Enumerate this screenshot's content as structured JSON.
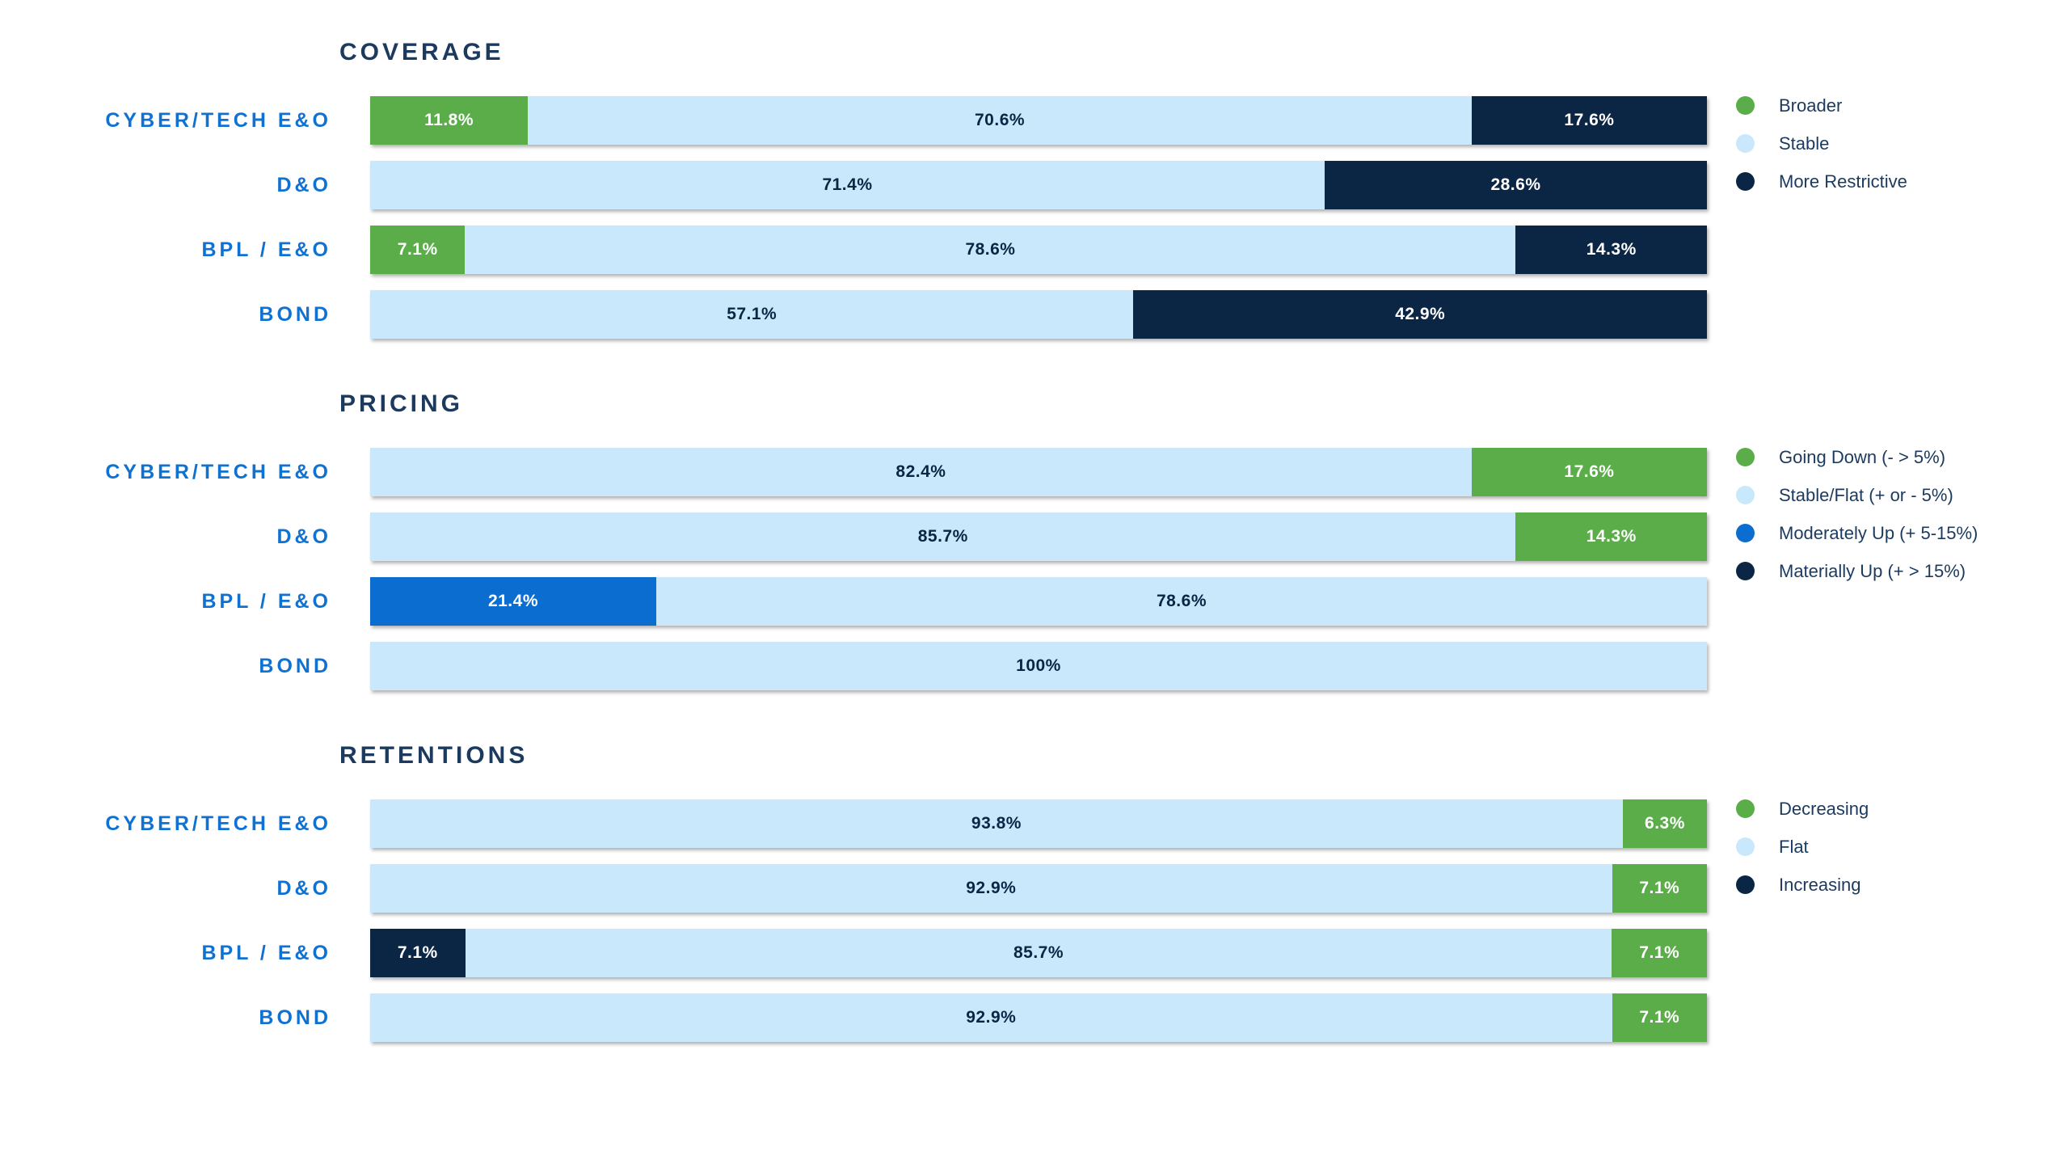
{
  "page": {
    "background": "#FFFFFF"
  },
  "colors": {
    "green": "#5BAD49",
    "light_blue": "#C9E8FB",
    "dark_navy": "#0B2645",
    "medium_blue": "#0C6DD0",
    "row_label_blue": "#0F72D2",
    "title_navy": "#1B3A5E"
  },
  "chart_data": [
    {
      "type": "bar",
      "stacked": true,
      "orientation": "horizontal",
      "title": "COVERAGE",
      "unit": "%",
      "xlim": [
        0,
        100
      ],
      "grid": false,
      "legend_position": "right",
      "categories": [
        "CYBER/TECH E&O",
        "D&O",
        "BPL / E&O",
        "BOND"
      ],
      "series": [
        {
          "name": "Broader",
          "color": "#5BAD49",
          "text_color": "#FFFFFF",
          "values": [
            11.8,
            null,
            7.1,
            null
          ]
        },
        {
          "name": "Stable",
          "color": "#C9E8FB",
          "text_color": "#0B2645",
          "values": [
            70.6,
            71.4,
            78.6,
            57.1
          ]
        },
        {
          "name": "More Restrictive",
          "color": "#0B2645",
          "text_color": "#FFFFFF",
          "values": [
            17.6,
            28.6,
            14.3,
            42.9
          ]
        }
      ],
      "legend": [
        {
          "label": "Broader",
          "color": "#5BAD49"
        },
        {
          "label": "Stable",
          "color": "#C9E8FB"
        },
        {
          "label": "More Restrictive",
          "color": "#0B2645"
        }
      ]
    },
    {
      "type": "bar",
      "stacked": true,
      "orientation": "horizontal",
      "title": "PRICING",
      "unit": "%",
      "xlim": [
        0,
        100
      ],
      "grid": false,
      "legend_position": "right",
      "categories": [
        "CYBER/TECH E&O",
        "D&O",
        "BPL / E&O",
        "BOND"
      ],
      "series": [
        {
          "name": "Moderately Up (+ 5-15%)",
          "color": "#0C6DD0",
          "text_color": "#FFFFFF",
          "values": [
            null,
            null,
            21.4,
            null
          ]
        },
        {
          "name": "Stable/Flat (+ or - 5%)",
          "color": "#C9E8FB",
          "text_color": "#0B2645",
          "values": [
            82.4,
            85.7,
            78.6,
            100
          ]
        },
        {
          "name": "Going Down (- > 5%)",
          "color": "#5BAD49",
          "text_color": "#FFFFFF",
          "values": [
            17.6,
            14.3,
            null,
            null
          ]
        }
      ],
      "legend": [
        {
          "label": "Going Down (- > 5%)",
          "color": "#5BAD49"
        },
        {
          "label": "Stable/Flat (+ or - 5%)",
          "color": "#C9E8FB"
        },
        {
          "label": "Moderately Up (+ 5-15%)",
          "color": "#0C6DD0"
        },
        {
          "label": "Materially Up (+ > 15%)",
          "color": "#0B2645"
        }
      ]
    },
    {
      "type": "bar",
      "stacked": true,
      "orientation": "horizontal",
      "title": "RETENTIONS",
      "unit": "%",
      "xlim": [
        0,
        100
      ],
      "grid": false,
      "legend_position": "right",
      "categories": [
        "CYBER/TECH E&O",
        "D&O",
        "BPL / E&O",
        "BOND"
      ],
      "series": [
        {
          "name": "Increasing",
          "color": "#0B2645",
          "text_color": "#FFFFFF",
          "values": [
            null,
            null,
            7.1,
            null
          ]
        },
        {
          "name": "Flat",
          "color": "#C9E8FB",
          "text_color": "#0B2645",
          "values": [
            93.8,
            92.9,
            85.7,
            92.9
          ]
        },
        {
          "name": "Decreasing",
          "color": "#5BAD49",
          "text_color": "#FFFFFF",
          "values": [
            6.3,
            7.1,
            7.1,
            7.1
          ]
        }
      ],
      "legend": [
        {
          "label": "Decreasing",
          "color": "#5BAD49"
        },
        {
          "label": "Flat",
          "color": "#C9E8FB"
        },
        {
          "label": "Increasing",
          "color": "#0B2645"
        }
      ]
    }
  ]
}
